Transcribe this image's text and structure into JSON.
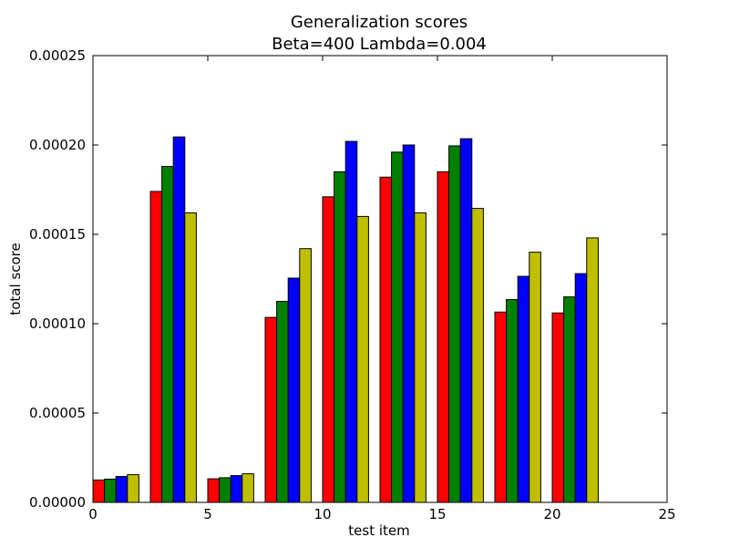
{
  "chart_data": {
    "type": "bar",
    "title": "Generalization scores",
    "subtitle": "Beta=400 Lambda=0.004",
    "xlabel": "test item",
    "ylabel": "total score",
    "xlim": [
      0,
      25
    ],
    "ylim": [
      0,
      0.00025
    ],
    "xticks": [
      0,
      5,
      10,
      15,
      20,
      25
    ],
    "xtick_labels": [
      "0",
      "5",
      "10",
      "15",
      "20",
      "25"
    ],
    "yticks": [
      0,
      5e-05,
      0.0001,
      0.00015,
      0.0002,
      0.00025
    ],
    "ytick_labels": [
      "0.00000",
      "0.00005",
      "0.00010",
      "0.00015",
      "0.00020",
      "0.00025"
    ],
    "grid": false,
    "legend": false,
    "bar_width": 0.5,
    "group_x": [
      0,
      2.5,
      5,
      7.5,
      10,
      12.5,
      15,
      17.5,
      20
    ],
    "series": [
      {
        "color": "#ff0000",
        "values": [
          1.25e-05,
          0.000174,
          1.32e-05,
          0.0001035,
          0.000171,
          0.000182,
          0.000185,
          0.0001065,
          0.000106
        ]
      },
      {
        "color": "#008000",
        "values": [
          1.3e-05,
          0.000188,
          1.38e-05,
          0.0001125,
          0.000185,
          0.000196,
          0.0001995,
          0.0001135,
          0.000115
        ]
      },
      {
        "color": "#0000ff",
        "values": [
          1.45e-05,
          0.0002045,
          1.5e-05,
          0.0001255,
          0.000202,
          0.0002,
          0.0002035,
          0.0001265,
          0.000128
        ]
      },
      {
        "color": "#bfbf00",
        "values": [
          1.55e-05,
          0.000162,
          1.6e-05,
          0.000142,
          0.00016,
          0.000162,
          0.0001645,
          0.00014,
          0.000148
        ]
      }
    ]
  }
}
